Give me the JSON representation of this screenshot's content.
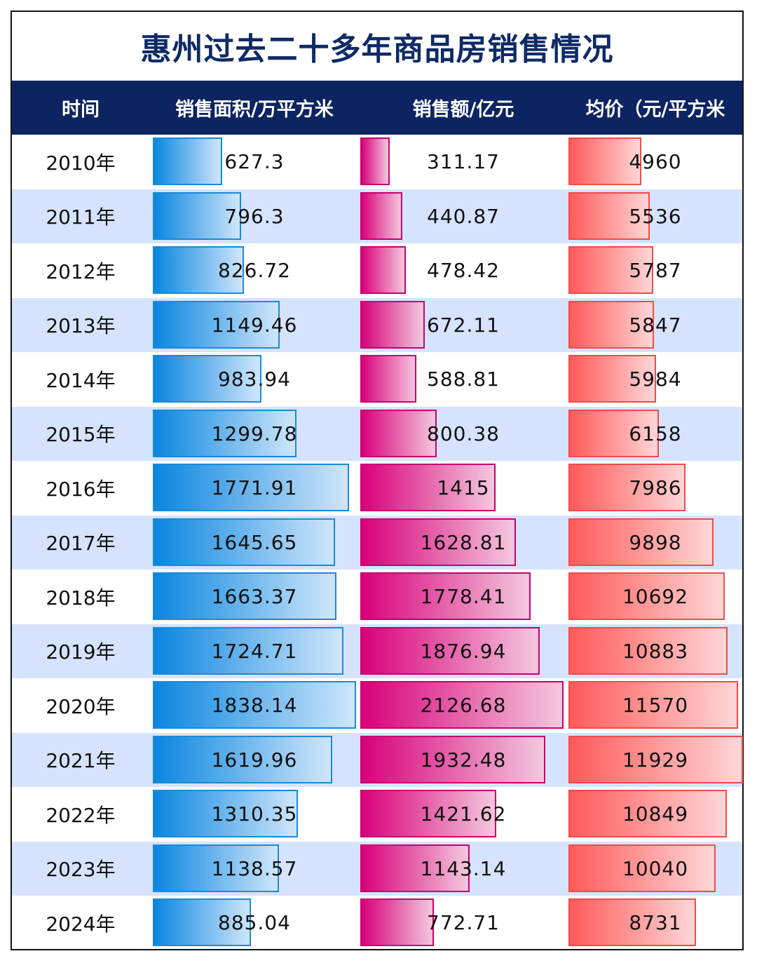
{
  "title": "惠州过去二十多年商品房销售情况",
  "header": {
    "time": "时间",
    "area": "销售面积/万平方米",
    "amount": "销售额/亿元",
    "price": "均价（元/平方米"
  },
  "colors": {
    "header_bg": "#0c2461",
    "title_color": "#0f2a66",
    "row_alt_bg": "#d5e3ff",
    "area_bar": "#0a86e0",
    "amount_bar": "#d9007a",
    "price_bar": "#ff5a5a"
  },
  "chart_data": {
    "type": "table",
    "title": "惠州过去二十多年商品房销售情况",
    "columns": [
      "时间",
      "销售面积/万平方米",
      "销售额/亿元",
      "均价（元/平方米"
    ],
    "rows": [
      {
        "year": "2010年",
        "area": "627.3",
        "amount": "311.17",
        "price": "4960"
      },
      {
        "year": "2011年",
        "area": "796.3",
        "amount": "440.87",
        "price": "5536"
      },
      {
        "year": "2012年",
        "area": "826.72",
        "amount": "478.42",
        "price": "5787"
      },
      {
        "year": "2013年",
        "area": "1149.46",
        "amount": "672.11",
        "price": "5847"
      },
      {
        "year": "2014年",
        "area": "983.94",
        "amount": "588.81",
        "price": "5984"
      },
      {
        "year": "2015年",
        "area": "1299.78",
        "amount": "800.38",
        "price": "6158"
      },
      {
        "year": "2016年",
        "area": "1771.91",
        "amount": "1415",
        "price": "7986"
      },
      {
        "year": "2017年",
        "area": "1645.65",
        "amount": "1628.81",
        "price": "9898"
      },
      {
        "year": "2018年",
        "area": "1663.37",
        "amount": "1778.41",
        "price": "10692"
      },
      {
        "year": "2019年",
        "area": "1724.71",
        "amount": "1876.94",
        "price": "10883"
      },
      {
        "year": "2020年",
        "area": "1838.14",
        "amount": "2126.68",
        "price": "11570"
      },
      {
        "year": "2021年",
        "area": "1619.96",
        "amount": "1932.48",
        "price": "11929"
      },
      {
        "year": "2022年",
        "area": "1310.35",
        "amount": "1421.62",
        "price": "10849"
      },
      {
        "year": "2023年",
        "area": "1138.57",
        "amount": "1143.14",
        "price": "10040"
      },
      {
        "year": "2024年",
        "area": "885.04",
        "amount": "772.71",
        "price": "8731"
      }
    ]
  }
}
